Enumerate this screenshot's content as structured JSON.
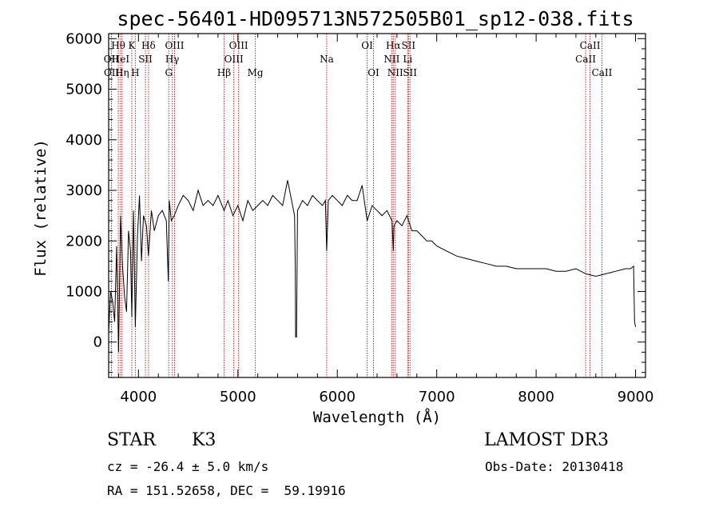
{
  "chart_data": {
    "type": "line",
    "title": "spec-56401-HD095713N572505B01_sp12-038.fits",
    "xlabel": "Wavelength (Å)",
    "ylabel": "Flux (relative)",
    "xlim": [
      3700,
      9100
    ],
    "ylim": [
      -700,
      6100
    ],
    "xticks": [
      4000,
      5000,
      6000,
      7000,
      8000,
      9000
    ],
    "yticks": [
      0,
      1000,
      2000,
      3000,
      4000,
      5000,
      6000
    ],
    "series": [
      {
        "name": "flux",
        "x": [
          3700,
          3720,
          3740,
          3760,
          3780,
          3800,
          3820,
          3840,
          3860,
          3880,
          3900,
          3920,
          3933,
          3950,
          3968,
          3990,
          4010,
          4030,
          4050,
          4080,
          4100,
          4130,
          4160,
          4200,
          4240,
          4280,
          4300,
          4310,
          4330,
          4360,
          4400,
          4450,
          4500,
          4550,
          4600,
          4650,
          4700,
          4750,
          4800,
          4861,
          4900,
          4950,
          5000,
          5050,
          5100,
          5150,
          5200,
          5250,
          5300,
          5350,
          5400,
          5450,
          5500,
          5540,
          5570,
          5577,
          5580,
          5590,
          5600,
          5650,
          5700,
          5750,
          5800,
          5850,
          5880,
          5893,
          5910,
          5950,
          6000,
          6050,
          6100,
          6150,
          6200,
          6250,
          6300,
          6350,
          6400,
          6450,
          6500,
          6550,
          6563,
          6570,
          6600,
          6650,
          6700,
          6750,
          6800,
          6850,
          6900,
          6950,
          7000,
          7100,
          7200,
          7300,
          7400,
          7500,
          7600,
          7700,
          7800,
          7900,
          8000,
          8100,
          8200,
          8300,
          8400,
          8500,
          8600,
          8700,
          8800,
          8900,
          8950,
          8980,
          8990,
          9000
        ],
        "y": [
          200,
          1000,
          800,
          400,
          1900,
          -200,
          2500,
          1500,
          900,
          600,
          2200,
          1800,
          500,
          2600,
          300,
          2100,
          2900,
          1600,
          2500,
          2300,
          1700,
          2600,
          2200,
          2500,
          2600,
          2400,
          1200,
          2800,
          2400,
          2500,
          2700,
          2900,
          2800,
          2600,
          3000,
          2700,
          2800,
          2700,
          2900,
          2600,
          2800,
          2500,
          2700,
          2400,
          2800,
          2600,
          2700,
          2800,
          2700,
          2900,
          2800,
          2700,
          3200,
          2800,
          2500,
          1500,
          100,
          100,
          2600,
          2800,
          2700,
          2900,
          2800,
          2700,
          2800,
          1800,
          2800,
          2900,
          2800,
          2700,
          2900,
          2800,
          2800,
          3100,
          2400,
          2700,
          2600,
          2500,
          2600,
          2400,
          1800,
          2300,
          2400,
          2300,
          2500,
          2200,
          2200,
          2100,
          2000,
          2000,
          1900,
          1800,
          1700,
          1650,
          1600,
          1550,
          1500,
          1500,
          1450,
          1450,
          1450,
          1450,
          1400,
          1400,
          1450,
          1350,
          1300,
          1350,
          1400,
          1450,
          1450,
          1500,
          400,
          300
        ]
      }
    ],
    "line_markers": [
      {
        "label": "OII",
        "x": 3727,
        "row": 2
      },
      {
        "label": "OII",
        "x": 3729,
        "row": 3
      },
      {
        "label": "Hθ",
        "x": 3797,
        "row": 1
      },
      {
        "label": "HeI",
        "x": 3820,
        "row": 2
      },
      {
        "label": "Hη",
        "x": 3835,
        "row": 3
      },
      {
        "label": "K",
        "x": 3933,
        "row": 1
      },
      {
        "label": "SII",
        "x": 4070,
        "row": 2
      },
      {
        "label": "H",
        "x": 3968,
        "row": 3
      },
      {
        "label": "Hδ",
        "x": 4101,
        "row": 1
      },
      {
        "label": "OIII",
        "x": 4363,
        "row": 1
      },
      {
        "label": "Hγ",
        "x": 4340,
        "row": 2
      },
      {
        "label": "G",
        "x": 4305,
        "row": 3
      },
      {
        "label": "Hβ",
        "x": 4861,
        "row": 3
      },
      {
        "label": "OIII",
        "x": 5007,
        "row": 1
      },
      {
        "label": "OIII",
        "x": 4959,
        "row": 2
      },
      {
        "label": "Mg",
        "x": 5175,
        "row": 3
      },
      {
        "label": "Na",
        "x": 5893,
        "row": 2
      },
      {
        "label": "OI",
        "x": 6300,
        "row": 1
      },
      {
        "label": "OI",
        "x": 6364,
        "row": 3
      },
      {
        "label": "Hα",
        "x": 6563,
        "row": 1
      },
      {
        "label": "NII",
        "x": 6548,
        "row": 2
      },
      {
        "label": "NII",
        "x": 6583,
        "row": 3
      },
      {
        "label": "SII",
        "x": 6716,
        "row": 1
      },
      {
        "label": "Li",
        "x": 6708,
        "row": 2
      },
      {
        "label": "SII",
        "x": 6731,
        "row": 3
      },
      {
        "label": "CaII",
        "x": 8542,
        "row": 1
      },
      {
        "label": "CaII",
        "x": 8498,
        "row": 2
      },
      {
        "label": "CaII",
        "x": 8662,
        "row": 3
      }
    ],
    "line_color": "#cc2222"
  },
  "info": {
    "class_label": "STAR",
    "subclass": "K3",
    "survey": "LAMOST DR3",
    "cz": "cz = -26.4 ± 5.0 km/s",
    "obs_date": "Obs-Date: 20130418",
    "coords": "RA = 151.52658, DEC =  59.19916"
  }
}
